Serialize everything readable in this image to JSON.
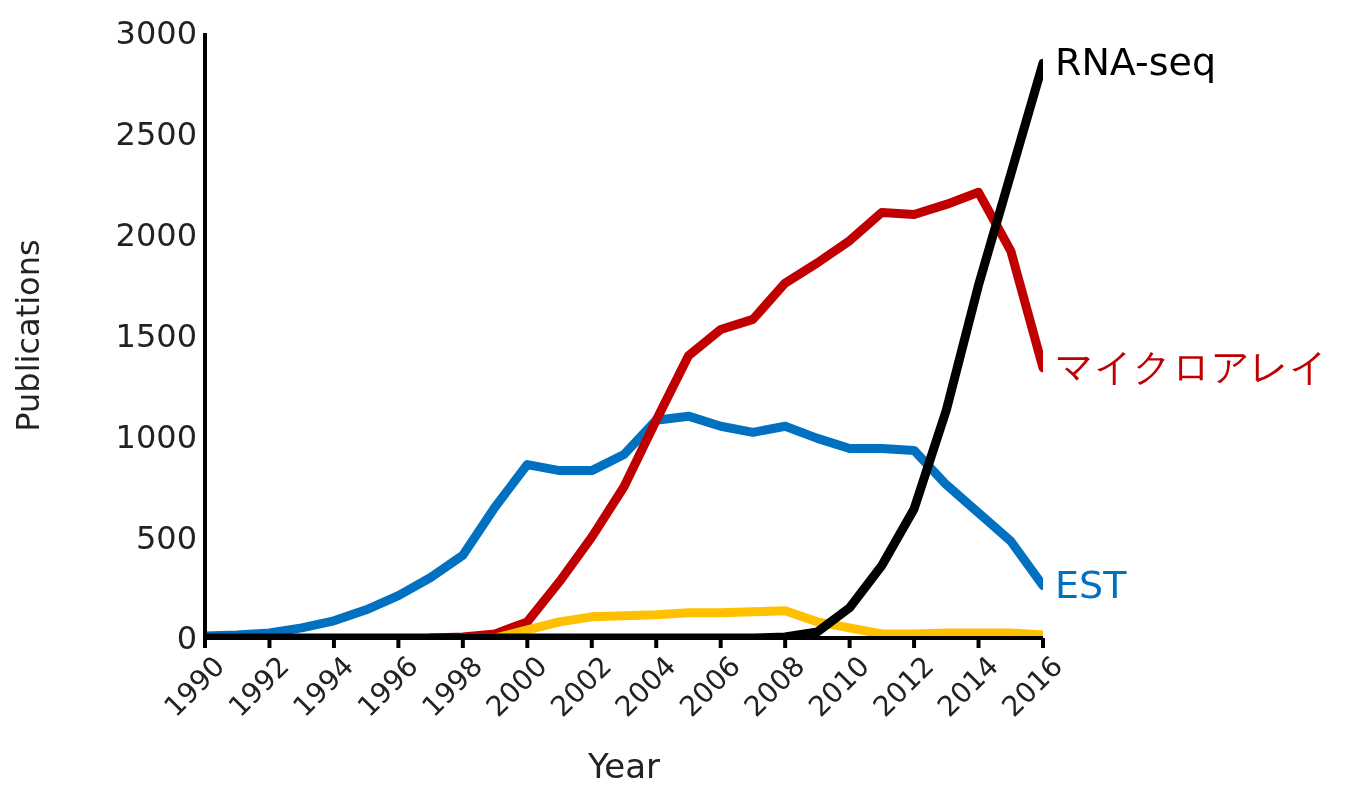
{
  "chart_data": {
    "type": "line",
    "xlabel": "Year",
    "ylabel": "Publications",
    "x": [
      1990,
      1991,
      1992,
      1993,
      1994,
      1995,
      1996,
      1997,
      1998,
      1999,
      2000,
      2001,
      2002,
      2003,
      2004,
      2005,
      2006,
      2007,
      2008,
      2009,
      2010,
      2011,
      2012,
      2013,
      2014,
      2015,
      2016
    ],
    "series": [
      {
        "name": "EST",
        "color": "#0070c0",
        "values": [
          10,
          15,
          25,
          50,
          85,
          140,
          210,
          300,
          410,
          650,
          860,
          830,
          830,
          910,
          1080,
          1100,
          1050,
          1020,
          1050,
          990,
          940,
          940,
          930,
          760,
          620,
          480,
          260
        ]
      },
      {
        "name": "マイクロアレイ",
        "color": "#c00000",
        "values": [
          null,
          null,
          null,
          null,
          null,
          null,
          null,
          0,
          5,
          20,
          80,
          280,
          500,
          750,
          1080,
          1400,
          1530,
          1580,
          1760,
          1860,
          1970,
          2110,
          2100,
          2150,
          2210,
          1920,
          1340
        ]
      },
      {
        "color": "#ffc000",
        "values": [
          null,
          null,
          null,
          null,
          null,
          null,
          null,
          null,
          0,
          0,
          40,
          80,
          105,
          110,
          115,
          125,
          125,
          130,
          135,
          80,
          50,
          20,
          20,
          25,
          25,
          25,
          15
        ]
      },
      {
        "name": "RNA-seq",
        "color": "#000000",
        "values": [
          0,
          0,
          0,
          0,
          0,
          0,
          0,
          0,
          0,
          0,
          0,
          0,
          0,
          0,
          0,
          0,
          0,
          0,
          5,
          30,
          150,
          360,
          640,
          1130,
          1750,
          2300,
          2850
        ]
      }
    ],
    "xlim": [
      1990,
      2016
    ],
    "xticks": [
      1990,
      1992,
      1994,
      1996,
      1998,
      2000,
      2002,
      2004,
      2006,
      2008,
      2010,
      2012,
      2014,
      2016
    ],
    "ylim": [
      0,
      3000
    ],
    "yticks": [
      0,
      500,
      1000,
      1500,
      2000,
      2500,
      3000
    ],
    "grid": false,
    "marker": "none",
    "line_style": "solid"
  }
}
